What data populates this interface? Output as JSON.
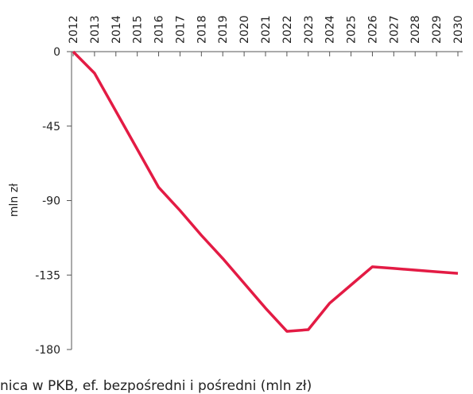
{
  "chart_data": {
    "type": "line",
    "x": [
      2012,
      2013,
      2014,
      2015,
      2016,
      2017,
      2018,
      2019,
      2020,
      2021,
      2022,
      2023,
      2024,
      2025,
      2026,
      2027,
      2028,
      2029,
      2030
    ],
    "series": [
      {
        "color": "#e31b44",
        "values": [
          0,
          -13,
          -36,
          -59,
          -82,
          -96,
          -111,
          -125,
          -140,
          -155,
          -169,
          -168,
          -152,
          -141,
          -130,
          -131,
          -132,
          -133,
          -134
        ]
      }
    ],
    "ylim": [
      -180,
      0
    ],
    "yticks": [
      0,
      -45,
      -90,
      -135,
      -180
    ],
    "ylabel": "mln zł",
    "caption": "nica w PKB, ef. bezpośredni i pośredni (mln zł)"
  }
}
